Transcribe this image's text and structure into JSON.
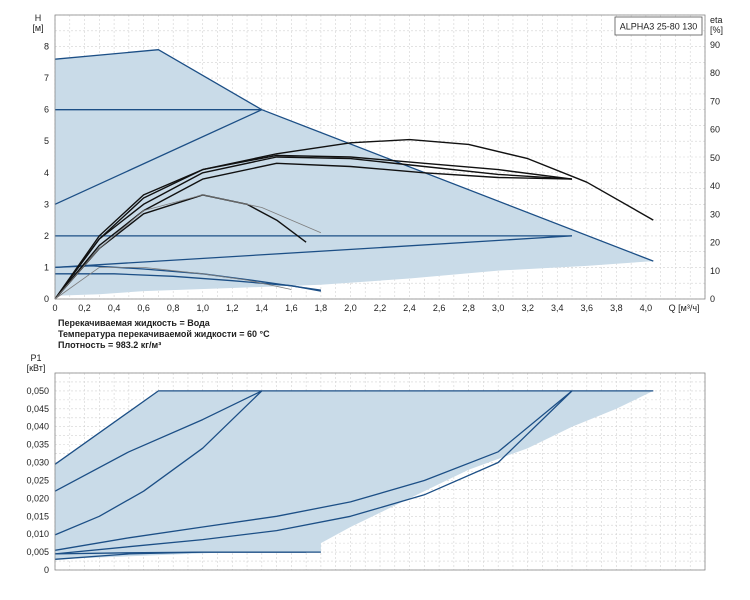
{
  "chart_data": [
    {
      "type": "line",
      "title": "ALPHA3 25-80 130",
      "ylabel_lines": [
        "H",
        "[м]"
      ],
      "y2label_lines": [
        "eta",
        "[%]"
      ],
      "xlabel": "Q [м³/ч]",
      "xlim": [
        0,
        4.4
      ],
      "ylim": [
        0,
        9
      ],
      "y2lim": [
        0,
        90
      ],
      "x_ticks": [
        "0",
        "0,2",
        "0,4",
        "0,6",
        "0,8",
        "1,0",
        "1,2",
        "1,4",
        "1,6",
        "1,8",
        "2,0",
        "2,2",
        "2,4",
        "2,6",
        "2,8",
        "3,0",
        "3,2",
        "3,4",
        "3,6",
        "3,8",
        "4,0"
      ],
      "y_ticks": [
        "0",
        "1",
        "2",
        "3",
        "4",
        "5",
        "6",
        "7",
        "8"
      ],
      "y2_ticks": [
        "0",
        "10",
        "20",
        "30",
        "40",
        "50",
        "60",
        "70",
        "80",
        "90"
      ],
      "grid": true,
      "operating_area": {
        "outer": [
          [
            0,
            7.6
          ],
          [
            0.7,
            7.9
          ],
          [
            1.4,
            6.0
          ],
          [
            4.05,
            1.2
          ],
          [
            3.6,
            1.05
          ],
          [
            3.0,
            0.9
          ],
          [
            2.4,
            0.65
          ],
          [
            1.8,
            0.45
          ],
          [
            1.2,
            0.35
          ],
          [
            0.6,
            0.25
          ],
          [
            0.3,
            0.15
          ],
          [
            0,
            0.1
          ]
        ]
      },
      "series": [
        {
          "style": "navy",
          "points": [
            [
              0,
              7.6
            ],
            [
              0.7,
              7.9
            ],
            [
              1.4,
              6.0
            ],
            [
              4.05,
              1.2
            ]
          ]
        },
        {
          "style": "navy",
          "points": [
            [
              0,
              6.0
            ],
            [
              1.4,
              6.0
            ]
          ]
        },
        {
          "style": "navy",
          "points": [
            [
              0,
              3.0
            ],
            [
              1.4,
              6.0
            ]
          ]
        },
        {
          "style": "navy",
          "points": [
            [
              0,
              2.0
            ],
            [
              3.5,
              2.0
            ]
          ]
        },
        {
          "style": "navy",
          "points": [
            [
              0,
              1.0
            ],
            [
              3.5,
              2.0
            ]
          ]
        },
        {
          "style": "navy",
          "points": [
            [
              0,
              1.0
            ],
            [
              0.25,
              1.05
            ],
            [
              0.6,
              0.95
            ],
            [
              1.0,
              0.8
            ],
            [
              1.4,
              0.55
            ],
            [
              1.8,
              0.28
            ]
          ]
        },
        {
          "style": "navy",
          "points": [
            [
              0,
              0.8
            ],
            [
              0.4,
              0.8
            ],
            [
              0.8,
              0.72
            ],
            [
              1.2,
              0.58
            ],
            [
              1.6,
              0.42
            ],
            [
              1.8,
              0.25
            ]
          ]
        },
        {
          "style": "eta",
          "points": [
            [
              0,
              0
            ],
            [
              0.3,
              2.0
            ],
            [
              0.6,
              3.3
            ],
            [
              1.0,
              4.1
            ],
            [
              1.5,
              4.6
            ],
            [
              2.0,
              4.95
            ],
            [
              2.4,
              5.05
            ],
            [
              2.8,
              4.9
            ],
            [
              3.2,
              4.45
            ],
            [
              3.6,
              3.7
            ],
            [
              4.05,
              2.5
            ]
          ]
        },
        {
          "style": "eta",
          "points": [
            [
              0,
              0
            ],
            [
              0.3,
              1.9
            ],
            [
              0.6,
              3.2
            ],
            [
              1.0,
              4.1
            ],
            [
              1.5,
              4.55
            ],
            [
              2.0,
              4.5
            ],
            [
              2.5,
              4.3
            ],
            [
              3.0,
              4.1
            ],
            [
              3.5,
              3.8
            ]
          ]
        },
        {
          "style": "eta",
          "points": [
            [
              0,
              0
            ],
            [
              0.3,
              1.9
            ],
            [
              0.6,
              3.0
            ],
            [
              1.0,
              4.0
            ],
            [
              1.5,
              4.5
            ],
            [
              2.0,
              4.45
            ],
            [
              2.5,
              4.2
            ],
            [
              3.0,
              3.95
            ],
            [
              3.5,
              3.8
            ]
          ]
        },
        {
          "style": "eta",
          "points": [
            [
              0,
              0
            ],
            [
              0.3,
              1.7
            ],
            [
              0.6,
              2.8
            ],
            [
              1.0,
              3.8
            ],
            [
              1.5,
              4.3
            ],
            [
              2.0,
              4.2
            ],
            [
              2.5,
              4.0
            ],
            [
              3.0,
              3.85
            ],
            [
              3.5,
              3.8
            ]
          ]
        },
        {
          "style": "eta",
          "points": [
            [
              0,
              0
            ],
            [
              0.3,
              1.6
            ],
            [
              0.6,
              2.7
            ],
            [
              1.0,
              3.3
            ],
            [
              1.3,
              3.0
            ],
            [
              1.5,
              2.5
            ],
            [
              1.7,
              1.8
            ]
          ]
        },
        {
          "style": "eta-thin",
          "points": [
            [
              0,
              0
            ],
            [
              0.3,
              1.6
            ],
            [
              0.6,
              2.8
            ],
            [
              1.0,
              3.3
            ],
            [
              1.4,
              2.9
            ],
            [
              1.8,
              2.1
            ]
          ]
        },
        {
          "style": "eta-thin",
          "points": [
            [
              0,
              0
            ],
            [
              0.3,
              1.0
            ],
            [
              0.6,
              1.0
            ],
            [
              1.0,
              0.8
            ],
            [
              1.3,
              0.6
            ],
            [
              1.6,
              0.3
            ]
          ]
        }
      ],
      "notes": [
        "Перекачиваемая жидкость = Вода",
        "Температура перекачиваемой жидкости = 60 °C",
        "Плотность = 983.2 кг/м³"
      ]
    },
    {
      "type": "line",
      "ylabel_lines": [
        "P1",
        "[кВт]"
      ],
      "xlim": [
        0,
        4.4
      ],
      "ylim": [
        0,
        0.055
      ],
      "y_ticks": [
        "0",
        "0,005",
        "0,010",
        "0,015",
        "0,020",
        "0,025",
        "0,030",
        "0,035",
        "0,040",
        "0,045",
        "0,050"
      ],
      "grid": true,
      "operating_area": {
        "outer": [
          [
            0,
            0.0295
          ],
          [
            0.7,
            0.05
          ],
          [
            4.05,
            0.05
          ],
          [
            3.8,
            0.045
          ],
          [
            3.5,
            0.04
          ],
          [
            3.2,
            0.034
          ],
          [
            2.8,
            0.028
          ],
          [
            2.4,
            0.02
          ],
          [
            2.0,
            0.012
          ],
          [
            1.8,
            0.0075
          ],
          [
            1.8,
            0.005
          ],
          [
            1.2,
            0.005
          ],
          [
            0.6,
            0.004
          ],
          [
            0,
            0.003
          ]
        ]
      },
      "series": [
        {
          "style": "navy",
          "points": [
            [
              0,
              0.0295
            ],
            [
              0.7,
              0.05
            ],
            [
              4.05,
              0.05
            ]
          ]
        },
        {
          "style": "navy",
          "points": [
            [
              0,
              0.022
            ],
            [
              0.5,
              0.033
            ],
            [
              1.0,
              0.042
            ],
            [
              1.4,
              0.05
            ]
          ]
        },
        {
          "style": "navy",
          "points": [
            [
              0,
              0.0098
            ],
            [
              0.3,
              0.015
            ],
            [
              0.6,
              0.022
            ],
            [
              1.0,
              0.034
            ],
            [
              1.4,
              0.05
            ]
          ]
        },
        {
          "style": "navy",
          "points": [
            [
              0,
              0.0055
            ],
            [
              0.5,
              0.009
            ],
            [
              1.0,
              0.012
            ],
            [
              1.5,
              0.015
            ],
            [
              2.0,
              0.019
            ],
            [
              2.5,
              0.025
            ],
            [
              3.0,
              0.033
            ],
            [
              3.5,
              0.05
            ]
          ]
        },
        {
          "style": "navy",
          "points": [
            [
              0,
              0.0045
            ],
            [
              0.5,
              0.0065
            ],
            [
              1.0,
              0.0085
            ],
            [
              1.5,
              0.011
            ],
            [
              2.0,
              0.015
            ],
            [
              2.5,
              0.021
            ],
            [
              3.0,
              0.03
            ],
            [
              3.5,
              0.05
            ]
          ]
        },
        {
          "style": "navy",
          "points": [
            [
              0,
              0.003
            ],
            [
              0.5,
              0.0045
            ],
            [
              1.0,
              0.005
            ],
            [
              1.7,
              0.005
            ]
          ]
        },
        {
          "style": "navy",
          "points": [
            [
              0,
              0.0045
            ],
            [
              0.5,
              0.0048
            ],
            [
              1.0,
              0.005
            ],
            [
              1.8,
              0.005
            ]
          ]
        }
      ]
    }
  ]
}
